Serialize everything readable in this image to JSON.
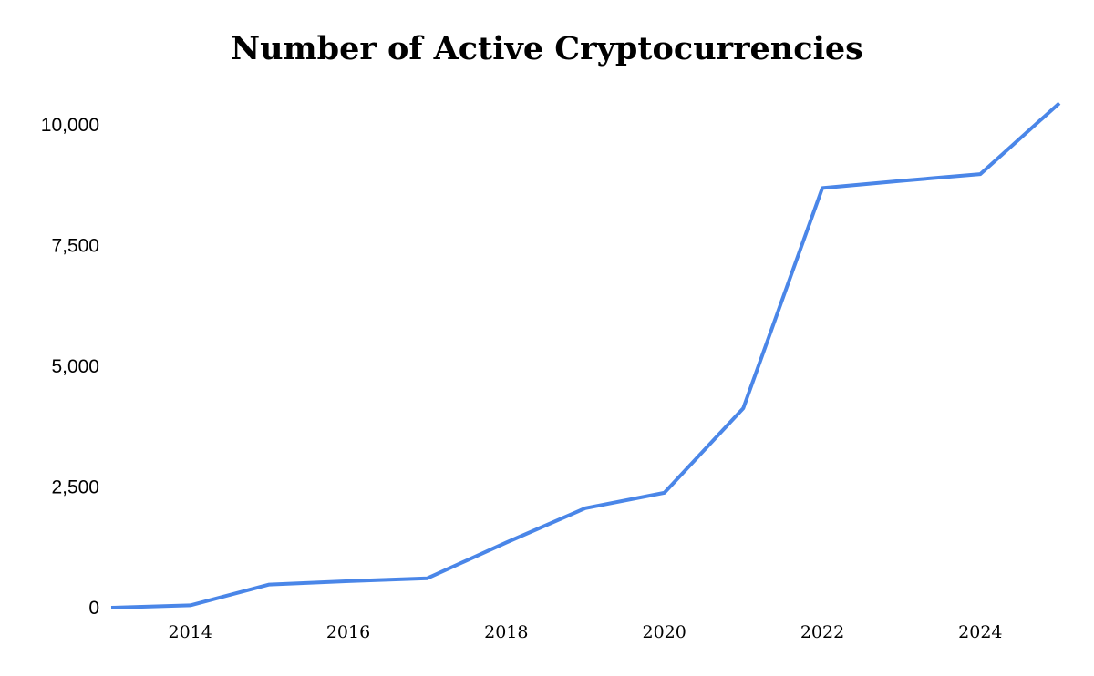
{
  "chart_data": {
    "type": "line",
    "title": "Number of Active Cryptocurrencies",
    "xlabel": "",
    "ylabel": "",
    "xlim": [
      2013,
      2025
    ],
    "ylim": [
      0,
      10000
    ],
    "y_ticks": [
      {
        "value": 0,
        "label": "0"
      },
      {
        "value": 2500,
        "label": "2,500"
      },
      {
        "value": 5000,
        "label": "5,000"
      },
      {
        "value": 7500,
        "label": "7,500"
      },
      {
        "value": 10000,
        "label": "10,000"
      }
    ],
    "x_ticks": [
      {
        "value": 2014,
        "label": "2014"
      },
      {
        "value": 2016,
        "label": "2016"
      },
      {
        "value": 2018,
        "label": "2018"
      },
      {
        "value": 2020,
        "label": "2020"
      },
      {
        "value": 2022,
        "label": "2022"
      },
      {
        "value": 2024,
        "label": "2024"
      }
    ],
    "grid": false,
    "legend": "none",
    "series": [
      {
        "color": "#4a86e8",
        "x": [
          2013,
          2014,
          2015,
          2016,
          2017,
          2018,
          2019,
          2020,
          2021,
          2022,
          2023,
          2024,
          2025
        ],
        "y": [
          0,
          50,
          480,
          550,
          610,
          1350,
          2060,
          2380,
          4130,
          8690,
          8840,
          8980,
          10450
        ]
      }
    ]
  }
}
